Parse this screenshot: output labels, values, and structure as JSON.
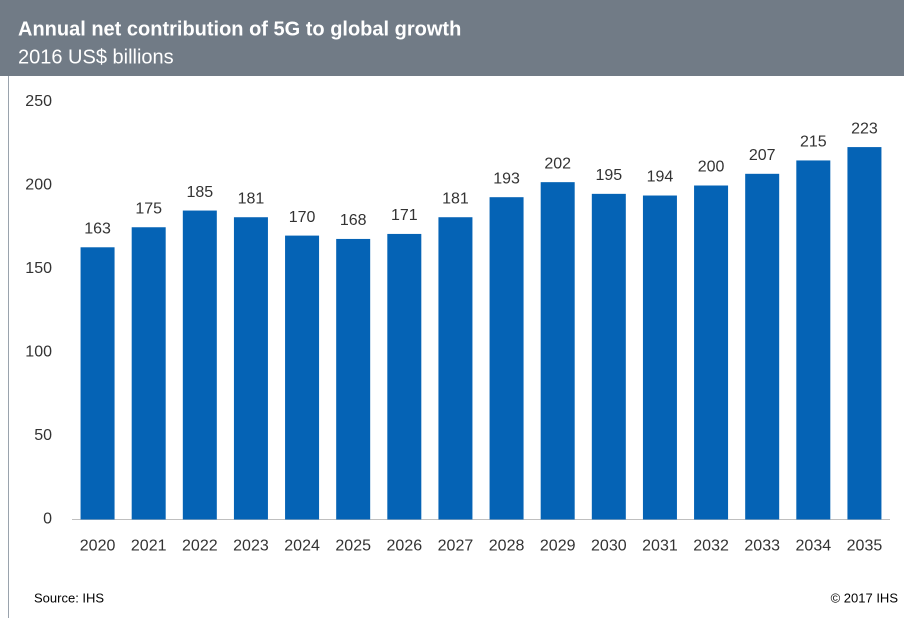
{
  "chart_data": {
    "type": "bar",
    "title": "Annual net contribution of 5G to global growth",
    "subtitle": "2016 US$ billions",
    "categories": [
      "2020",
      "2021",
      "2022",
      "2023",
      "2024",
      "2025",
      "2026",
      "2027",
      "2028",
      "2029",
      "2030",
      "2031",
      "2032",
      "2033",
      "2034",
      "2035"
    ],
    "values": [
      163,
      175,
      185,
      181,
      170,
      168,
      171,
      181,
      193,
      202,
      195,
      194,
      200,
      207,
      215,
      223
    ],
    "color": "#0563b5",
    "ylim": [
      0,
      250
    ],
    "yticks": [
      0,
      50,
      100,
      150,
      200,
      250
    ],
    "grid": false,
    "source": "Source: IHS",
    "copyright": "© 2017 IHS"
  }
}
